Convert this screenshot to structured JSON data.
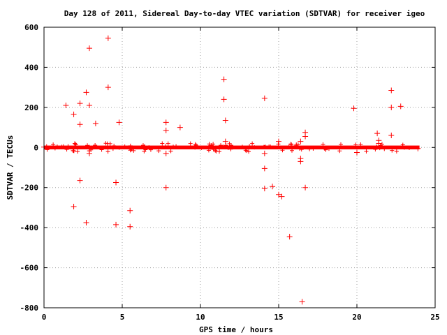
{
  "chart_data": {
    "type": "scatter",
    "title": "Day 128 of 2011, Sidereal Day-to-day VTEC variation (SDTVAR) for receiver igeo",
    "xlabel": "GPS time / hours",
    "ylabel": "SDTVAR / TECUs",
    "xlim": [
      0,
      25
    ],
    "ylim": [
      -800,
      600
    ],
    "xticks": [
      0,
      5,
      10,
      15,
      20,
      25
    ],
    "yticks": [
      -800,
      -600,
      -400,
      -200,
      0,
      200,
      400,
      600
    ],
    "grid": true,
    "marker": "plus",
    "color": "#ff0000",
    "band": {
      "x_start": 0,
      "x_end": 24,
      "y_center": 0,
      "y_halfwidth": 6
    },
    "series": [
      {
        "points": [
          [
            0.0,
            2
          ],
          [
            1.4,
            210
          ],
          [
            1.9,
            165
          ],
          [
            1.9,
            -295
          ],
          [
            2.3,
            220
          ],
          [
            2.3,
            115
          ],
          [
            2.3,
            -165
          ],
          [
            2.7,
            275
          ],
          [
            2.7,
            -375
          ],
          [
            2.9,
            495
          ],
          [
            2.9,
            210
          ],
          [
            2.9,
            -30
          ],
          [
            3.3,
            120
          ],
          [
            4.1,
            545
          ],
          [
            4.1,
            300
          ],
          [
            4.6,
            -175
          ],
          [
            4.6,
            -385
          ],
          [
            4.8,
            125
          ],
          [
            5.5,
            -315
          ],
          [
            5.5,
            -395
          ],
          [
            7.8,
            125
          ],
          [
            7.8,
            85
          ],
          [
            7.8,
            -30
          ],
          [
            7.8,
            -200
          ],
          [
            8.7,
            100
          ],
          [
            11.5,
            340
          ],
          [
            11.5,
            240
          ],
          [
            11.6,
            135
          ],
          [
            11.6,
            30
          ],
          [
            14.1,
            245
          ],
          [
            14.1,
            -30
          ],
          [
            14.1,
            -105
          ],
          [
            14.1,
            -205
          ],
          [
            14.6,
            -195
          ],
          [
            15.0,
            30
          ],
          [
            15.0,
            -235
          ],
          [
            15.2,
            -245
          ],
          [
            15.7,
            -445
          ],
          [
            16.4,
            30
          ],
          [
            16.4,
            -55
          ],
          [
            16.4,
            -70
          ],
          [
            16.5,
            -770
          ],
          [
            16.7,
            75
          ],
          [
            16.7,
            55
          ],
          [
            16.7,
            -200
          ],
          [
            19.8,
            195
          ],
          [
            20.0,
            -25
          ],
          [
            21.3,
            70
          ],
          [
            21.4,
            35
          ],
          [
            21.4,
            20
          ],
          [
            22.2,
            285
          ],
          [
            22.2,
            200
          ],
          [
            22.2,
            60
          ],
          [
            22.8,
            205
          ],
          [
            23.9,
            -5
          ]
        ]
      }
    ]
  }
}
